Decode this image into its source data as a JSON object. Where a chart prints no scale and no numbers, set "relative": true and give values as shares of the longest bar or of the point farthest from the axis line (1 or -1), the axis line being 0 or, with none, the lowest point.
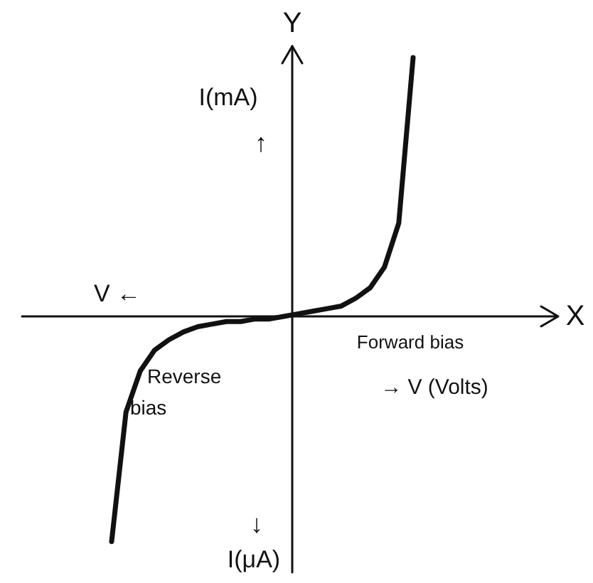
{
  "chart_data": {
    "type": "line",
    "relative": true,
    "categories": [
      null,
      null,
      null,
      null,
      null,
      null,
      null,
      null,
      null,
      null,
      null,
      null,
      null,
      null,
      null,
      null,
      null,
      null,
      null,
      null,
      null,
      null
    ],
    "series": [
      {
        "color": "#111111",
        "values": [
          -0.87,
          -0.37,
          -0.21,
          -0.13,
          -0.09,
          -0.06,
          -0.04,
          -0.03,
          -0.02,
          -0.02,
          -0.01,
          -0.01,
          0,
          0.01,
          0.02,
          0.03,
          0.04,
          0.07,
          0.11,
          0.19,
          0.36,
          1.0
        ]
      }
    ],
    "annotations": [
      "X",
      "Y",
      "I(mA)",
      "↑",
      "V ←",
      "Reverse\nbias",
      "Forward bias",
      "→ V (Volts)",
      "↓",
      "I(μA)"
    ],
    "line_style": "solid"
  }
}
